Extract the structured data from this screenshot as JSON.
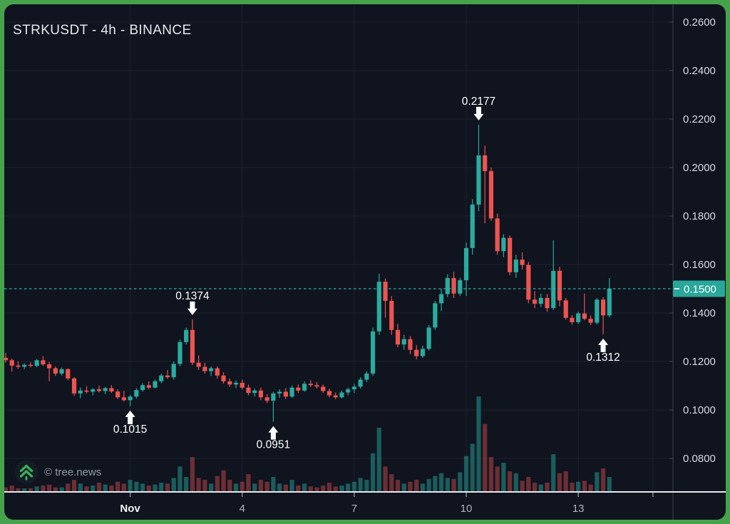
{
  "window": {
    "title": "STRKUSDT - 4h - BINANCE"
  },
  "watermark": {
    "text": "© tree.news",
    "icon": "double-chevron-up-icon"
  },
  "colors": {
    "frame": "#46a34c",
    "background": "#0f141f",
    "grid": "#1b2231",
    "up": "#2aab9f",
    "down": "#ef5350",
    "vol_up": "rgba(42,171,158,0.48)",
    "vol_down": "rgba(239,83,80,0.42)",
    "price_line": "#33b0a6",
    "price_tag_bg": "#2aa79b",
    "price_tag_text": "#ffffff",
    "axis_text": "#d6dae2",
    "axis_border": "#39404f",
    "time_text": "#aeb4bf",
    "time_text_emphasis": "#f2f4f7",
    "separator": "#e9eaec",
    "annotation": "#ffffff"
  },
  "chart_data": {
    "type": "candlestick",
    "symbol": "STRKUSDT",
    "interval": "4h",
    "exchange": "BINANCE",
    "title": "STRKUSDT - 4h - BINANCE",
    "ylim": [
      0.066,
      0.267
    ],
    "grid": true,
    "y_axis": {
      "side": "right",
      "tick_prices": [
        0.26,
        0.24,
        0.22,
        0.2,
        0.18,
        0.16,
        0.14,
        0.12,
        0.1,
        0.08
      ],
      "decimals": 4
    },
    "price_line": {
      "value": 0.15,
      "tag": "0.1500",
      "style": "dotted"
    },
    "x_axis": {
      "ticks": [
        {
          "label": "Nov",
          "index": 20,
          "emphasis": true
        },
        {
          "label": "4",
          "index": 38,
          "emphasis": false
        },
        {
          "label": "7",
          "index": 56,
          "emphasis": false
        },
        {
          "label": "10",
          "index": 74,
          "emphasis": false
        },
        {
          "label": "13",
          "index": 92,
          "emphasis": false
        },
        {
          "label": "",
          "index": 104,
          "emphasis": false
        }
      ]
    },
    "annotations": [
      {
        "label": "0.2177",
        "price": 0.2177,
        "index": 76,
        "direction": "down"
      },
      {
        "label": "0.1374",
        "price": 0.1374,
        "index": 30,
        "direction": "down"
      },
      {
        "label": "0.1015",
        "price": 0.1015,
        "index": 20,
        "direction": "up"
      },
      {
        "label": "0.0951",
        "price": 0.0951,
        "index": 43,
        "direction": "up"
      },
      {
        "label": "0.1312",
        "price": 0.1312,
        "index": 96,
        "direction": "up"
      }
    ],
    "volume_units": "relative 0-100 of max bar (volume axis unlabeled)",
    "candles_format": [
      "open",
      "high",
      "low",
      "close",
      "volume_rel"
    ],
    "candles": [
      [
        0.1215,
        0.1235,
        0.1195,
        0.1205,
        4
      ],
      [
        0.1205,
        0.1212,
        0.1158,
        0.1183,
        6
      ],
      [
        0.1183,
        0.12,
        0.117,
        0.1178,
        3
      ],
      [
        0.1178,
        0.1192,
        0.1168,
        0.1186,
        3
      ],
      [
        0.1186,
        0.1196,
        0.1175,
        0.1182,
        3
      ],
      [
        0.1182,
        0.121,
        0.1176,
        0.1205,
        5
      ],
      [
        0.1205,
        0.1222,
        0.1182,
        0.1188,
        6
      ],
      [
        0.1188,
        0.1198,
        0.1118,
        0.1172,
        7
      ],
      [
        0.1172,
        0.118,
        0.114,
        0.115,
        4
      ],
      [
        0.115,
        0.1175,
        0.1142,
        0.1168,
        4
      ],
      [
        0.1168,
        0.1172,
        0.1122,
        0.113,
        8
      ],
      [
        0.113,
        0.1136,
        0.1058,
        0.1068,
        12
      ],
      [
        0.1068,
        0.1092,
        0.1048,
        0.108,
        8
      ],
      [
        0.108,
        0.1098,
        0.1068,
        0.1075,
        5
      ],
      [
        0.1075,
        0.109,
        0.106,
        0.1085,
        6
      ],
      [
        0.1085,
        0.11,
        0.1072,
        0.1078,
        9
      ],
      [
        0.1078,
        0.1095,
        0.1065,
        0.109,
        7
      ],
      [
        0.109,
        0.1102,
        0.107,
        0.1076,
        6
      ],
      [
        0.1076,
        0.1085,
        0.1045,
        0.1052,
        10
      ],
      [
        0.1052,
        0.1079,
        0.1035,
        0.104,
        8
      ],
      [
        0.104,
        0.1062,
        0.1015,
        0.1055,
        12
      ],
      [
        0.1055,
        0.109,
        0.1048,
        0.1082,
        10
      ],
      [
        0.1082,
        0.111,
        0.1075,
        0.1102,
        8
      ],
      [
        0.1102,
        0.1118,
        0.1085,
        0.1092,
        6
      ],
      [
        0.1092,
        0.1125,
        0.1088,
        0.1118,
        7
      ],
      [
        0.1118,
        0.115,
        0.111,
        0.1142,
        9
      ],
      [
        0.1142,
        0.1165,
        0.1128,
        0.1135,
        8
      ],
      [
        0.1135,
        0.12,
        0.1125,
        0.119,
        14
      ],
      [
        0.119,
        0.129,
        0.118,
        0.128,
        26
      ],
      [
        0.128,
        0.134,
        0.127,
        0.133,
        15
      ],
      [
        0.133,
        0.1374,
        0.1185,
        0.1195,
        36
      ],
      [
        0.1195,
        0.1225,
        0.1165,
        0.1178,
        14
      ],
      [
        0.1178,
        0.1195,
        0.115,
        0.116,
        12
      ],
      [
        0.116,
        0.118,
        0.114,
        0.1172,
        8
      ],
      [
        0.1172,
        0.118,
        0.113,
        0.1142,
        16
      ],
      [
        0.1142,
        0.1155,
        0.1108,
        0.1118,
        22
      ],
      [
        0.1118,
        0.113,
        0.1095,
        0.1105,
        12
      ],
      [
        0.1105,
        0.1122,
        0.109,
        0.1112,
        8
      ],
      [
        0.1112,
        0.1125,
        0.1085,
        0.1092,
        10
      ],
      [
        0.1092,
        0.1105,
        0.106,
        0.107,
        18
      ],
      [
        0.107,
        0.1088,
        0.1055,
        0.108,
        8
      ],
      [
        0.108,
        0.1092,
        0.104,
        0.1052,
        12
      ],
      [
        0.1052,
        0.1065,
        0.1028,
        0.1038,
        10
      ],
      [
        0.1038,
        0.1075,
        0.0951,
        0.1068,
        15
      ],
      [
        0.1068,
        0.1085,
        0.105,
        0.1075,
        8
      ],
      [
        0.1075,
        0.109,
        0.1045,
        0.1055,
        7
      ],
      [
        0.1055,
        0.11,
        0.105,
        0.1092,
        12
      ],
      [
        0.1092,
        0.1105,
        0.107,
        0.108,
        6
      ],
      [
        0.108,
        0.1118,
        0.1075,
        0.1108,
        8
      ],
      [
        0.1108,
        0.1122,
        0.1095,
        0.1102,
        5
      ],
      [
        0.1102,
        0.1115,
        0.1088,
        0.1096,
        4
      ],
      [
        0.1096,
        0.1105,
        0.107,
        0.1078,
        6
      ],
      [
        0.1078,
        0.1088,
        0.1052,
        0.106,
        9
      ],
      [
        0.106,
        0.1072,
        0.1045,
        0.1052,
        5
      ],
      [
        0.1052,
        0.108,
        0.1048,
        0.1072,
        6
      ],
      [
        0.1072,
        0.1092,
        0.106,
        0.1085,
        8
      ],
      [
        0.1085,
        0.1108,
        0.107,
        0.1096,
        10
      ],
      [
        0.1096,
        0.1135,
        0.1088,
        0.1125,
        14
      ],
      [
        0.1125,
        0.116,
        0.1115,
        0.115,
        12
      ],
      [
        0.115,
        0.134,
        0.114,
        0.1324,
        40
      ],
      [
        0.1324,
        0.1562,
        0.131,
        0.1529,
        67
      ],
      [
        0.1529,
        0.1542,
        0.138,
        0.145,
        26
      ],
      [
        0.145,
        0.147,
        0.131,
        0.133,
        18
      ],
      [
        0.133,
        0.1355,
        0.1258,
        0.127,
        12
      ],
      [
        0.127,
        0.131,
        0.1248,
        0.1292,
        8
      ],
      [
        0.1292,
        0.1305,
        0.123,
        0.1248,
        10
      ],
      [
        0.1248,
        0.1268,
        0.1208,
        0.1222,
        12
      ],
      [
        0.1222,
        0.1265,
        0.1215,
        0.1252,
        8
      ],
      [
        0.1252,
        0.135,
        0.1245,
        0.134,
        13
      ],
      [
        0.134,
        0.145,
        0.133,
        0.144,
        16
      ],
      [
        0.144,
        0.15,
        0.1408,
        0.1478,
        19
      ],
      [
        0.1478,
        0.156,
        0.1465,
        0.1544,
        14
      ],
      [
        0.1544,
        0.157,
        0.1462,
        0.148,
        13
      ],
      [
        0.148,
        0.1545,
        0.147,
        0.1535,
        20
      ],
      [
        0.1535,
        0.169,
        0.1471,
        0.1668,
        37
      ],
      [
        0.1668,
        0.187,
        0.1641,
        0.1847,
        50
      ],
      [
        0.1847,
        0.2177,
        0.182,
        0.205,
        100
      ],
      [
        0.205,
        0.209,
        0.177,
        0.1985,
        71
      ],
      [
        0.1985,
        0.2,
        0.178,
        0.179,
        36
      ],
      [
        0.179,
        0.181,
        0.164,
        0.1655,
        26
      ],
      [
        0.1655,
        0.1725,
        0.163,
        0.171,
        30
      ],
      [
        0.171,
        0.172,
        0.1555,
        0.1568,
        21
      ],
      [
        0.1568,
        0.164,
        0.1545,
        0.162,
        19
      ],
      [
        0.162,
        0.165,
        0.158,
        0.1598,
        11
      ],
      [
        0.1598,
        0.161,
        0.144,
        0.1455,
        15
      ],
      [
        0.1455,
        0.149,
        0.142,
        0.1438,
        9
      ],
      [
        0.1438,
        0.148,
        0.1425,
        0.1462,
        7
      ],
      [
        0.1462,
        0.1478,
        0.1405,
        0.142,
        9
      ],
      [
        0.142,
        0.17,
        0.1412,
        0.1574,
        39
      ],
      [
        0.1574,
        0.159,
        0.1428,
        0.1452,
        19
      ],
      [
        0.1452,
        0.1462,
        0.1372,
        0.138,
        21
      ],
      [
        0.138,
        0.1392,
        0.1352,
        0.1362,
        9
      ],
      [
        0.1362,
        0.1405,
        0.1355,
        0.1398,
        10
      ],
      [
        0.1398,
        0.148,
        0.137,
        0.1376,
        11
      ],
      [
        0.1376,
        0.139,
        0.135,
        0.136,
        7
      ],
      [
        0.136,
        0.1462,
        0.1352,
        0.1455,
        20
      ],
      [
        0.1455,
        0.1465,
        0.1312,
        0.139,
        24
      ],
      [
        0.139,
        0.1544,
        0.1382,
        0.15,
        15
      ]
    ]
  }
}
